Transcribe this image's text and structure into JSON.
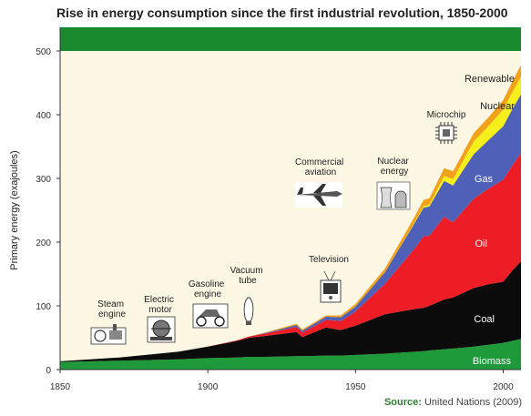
{
  "title": "Rise in energy consumption since the first industrial revolution, 1850-2000",
  "source_label": "Source:",
  "source_text": "United Nations (2009)",
  "colors": {
    "background": "#fdf8e4",
    "banner": "#1a8a2e",
    "Biomass": "#1f9a3a",
    "Coal": "#0b0b0b",
    "Oil": "#ee1c24",
    "Gas": "#4f60b8",
    "Nuclear": "#f5ef1c",
    "Renewable": "#f2a21a"
  },
  "chart_data": {
    "type": "area",
    "stacked": true,
    "title": "Rise in energy consumption since the first industrial revolution, 1850-2000",
    "xlabel": "",
    "ylabel": "Primary energy (exajoules)",
    "xlim": [
      1850,
      2006
    ],
    "ylim": [
      0,
      500
    ],
    "x_ticks": [
      1850,
      1900,
      1950,
      2000
    ],
    "y_ticks": [
      0,
      100,
      200,
      300,
      400,
      500
    ],
    "grid": false,
    "x": [
      1850,
      1870,
      1890,
      1900,
      1910,
      1914,
      1920,
      1930,
      1932,
      1940,
      1945,
      1950,
      1960,
      1970,
      1973,
      1975,
      1980,
      1983,
      1990,
      1995,
      2000,
      2003,
      2006
    ],
    "series": [
      {
        "name": "Biomass",
        "values": [
          12,
          14,
          16,
          18,
          19,
          20,
          20,
          21,
          21,
          22,
          22,
          23,
          25,
          28,
          29,
          30,
          32,
          33,
          36,
          39,
          42,
          45,
          48
        ]
      },
      {
        "name": "Coal",
        "values": [
          1,
          5,
          12,
          18,
          26,
          30,
          33,
          38,
          30,
          44,
          40,
          46,
          62,
          67,
          68,
          70,
          78,
          80,
          92,
          95,
          96,
          110,
          122
        ]
      },
      {
        "name": "Oil",
        "values": [
          0,
          0,
          0,
          0,
          1,
          2,
          4,
          8,
          7,
          12,
          14,
          22,
          48,
          95,
          112,
          110,
          130,
          118,
          140,
          150,
          160,
          165,
          170
        ]
      },
      {
        "name": "Gas",
        "values": [
          0,
          0,
          0,
          0,
          0,
          0,
          1,
          3,
          3,
          5,
          6,
          8,
          18,
          40,
          45,
          46,
          56,
          58,
          70,
          76,
          84,
          88,
          92
        ]
      },
      {
        "name": "Nuclear",
        "values": [
          0,
          0,
          0,
          0,
          0,
          0,
          0,
          0,
          0,
          0,
          0,
          0,
          0,
          1,
          2,
          3,
          8,
          10,
          20,
          22,
          26,
          27,
          28
        ]
      },
      {
        "name": "Renewable",
        "values": [
          0,
          0,
          0,
          0,
          0,
          0,
          1,
          2,
          2,
          2,
          3,
          4,
          6,
          9,
          10,
          10,
          12,
          12,
          13,
          14,
          15,
          16,
          18
        ]
      }
    ],
    "series_labels": [
      "Renewable",
      "Nuclear",
      "Gas",
      "Oil",
      "Coal",
      "Biomass"
    ],
    "annotations": [
      {
        "text": "Steam engine",
        "icon": "steam-engine-icon"
      },
      {
        "text": "Electric motor",
        "icon": "electric-motor-icon"
      },
      {
        "text": "Gasoline engine",
        "icon": "car-icon"
      },
      {
        "text": "Vacuum tube",
        "icon": "vacuum-tube-icon"
      },
      {
        "text": "Television",
        "icon": "television-icon"
      },
      {
        "text": "Commercial aviation",
        "icon": "airplane-icon"
      },
      {
        "text": "Nuclear energy",
        "icon": "nuclear-plant-icon"
      },
      {
        "text": "Microchip",
        "icon": "microchip-icon"
      }
    ]
  }
}
